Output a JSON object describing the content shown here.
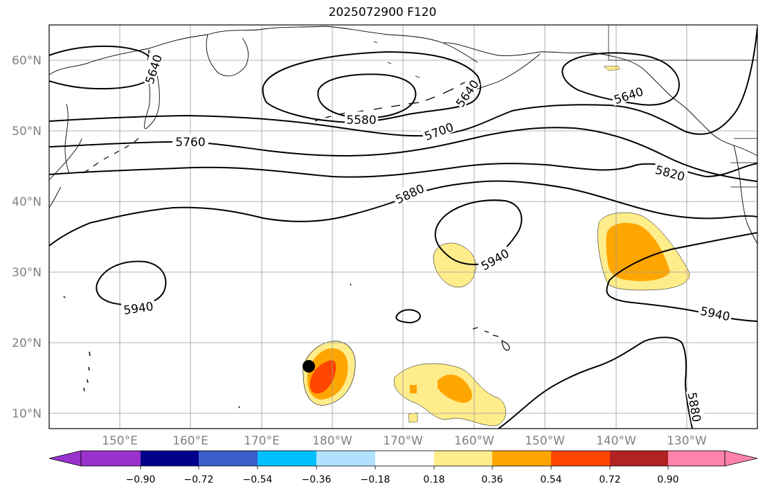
{
  "title": "2025072900 F120",
  "lat_labels": [
    "60°N",
    "50°N",
    "40°N",
    "30°N",
    "20°N",
    "10°N"
  ],
  "lon_labels": [
    "150°E",
    "160°E",
    "170°E",
    "180°W",
    "170°W",
    "160°W",
    "150°W",
    "140°W",
    "130°W"
  ],
  "contour_labels": [
    "5640",
    "5640",
    "5580",
    "5640",
    "5700",
    "5760",
    "5820",
    "5880",
    "5940",
    "5940",
    "5940",
    "5880"
  ],
  "colorbar": {
    "ticks": [
      "−0.90",
      "−0.72",
      "−0.54",
      "−0.36",
      "−0.18",
      "0.18",
      "0.36",
      "0.54",
      "0.72",
      "0.90"
    ],
    "colors": [
      "#9932cc",
      "#00008b",
      "#3a5fcd",
      "#00bfff",
      "#b0e2ff",
      "#ffffff",
      "#ffec8b",
      "#ffa500",
      "#ff4500",
      "#b22222",
      "#ff82ab"
    ]
  },
  "marker": "storm-position-dot"
}
